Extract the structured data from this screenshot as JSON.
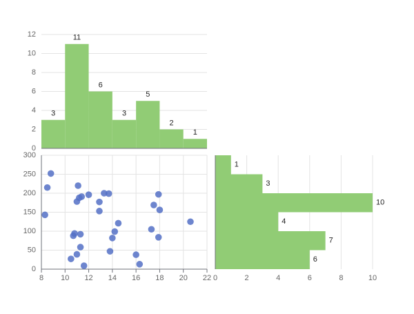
{
  "chart_data": [
    {
      "type": "bar",
      "panel": "top-histogram",
      "bins": [
        [
          8,
          10
        ],
        [
          10,
          12
        ],
        [
          12,
          14
        ],
        [
          14,
          16
        ],
        [
          16,
          18
        ],
        [
          18,
          20
        ],
        [
          20,
          22
        ]
      ],
      "values": [
        3,
        11,
        6,
        3,
        5,
        2,
        1
      ],
      "ylim": [
        0,
        12
      ],
      "yticks": [
        0,
        2,
        4,
        6,
        8,
        10,
        12
      ],
      "color": "#91cc75",
      "grid": true
    },
    {
      "type": "scatter",
      "panel": "scatter",
      "xlim": [
        8,
        22
      ],
      "ylim": [
        0,
        300
      ],
      "xticks": [
        8,
        10,
        12,
        14,
        16,
        18,
        20,
        22
      ],
      "yticks": [
        0,
        50,
        100,
        150,
        200,
        250,
        300
      ],
      "color": "#5470c6",
      "grid": true,
      "points": [
        [
          8.8,
          252
        ],
        [
          8.5,
          215
        ],
        [
          8.3,
          143
        ],
        [
          11.1,
          220
        ],
        [
          11.2,
          188
        ],
        [
          11.4,
          191
        ],
        [
          11.0,
          178
        ],
        [
          12.0,
          196
        ],
        [
          13.3,
          200
        ],
        [
          13.7,
          199
        ],
        [
          12.9,
          177
        ],
        [
          12.9,
          153
        ],
        [
          14.5,
          121
        ],
        [
          14.2,
          99
        ],
        [
          14.0,
          82
        ],
        [
          13.8,
          47
        ],
        [
          10.8,
          94
        ],
        [
          10.7,
          88
        ],
        [
          11.3,
          92
        ],
        [
          11.3,
          58
        ],
        [
          11.0,
          39
        ],
        [
          10.5,
          27
        ],
        [
          11.6,
          9
        ],
        [
          16.0,
          38
        ],
        [
          16.3,
          13
        ],
        [
          17.5,
          169
        ],
        [
          17.3,
          105
        ],
        [
          17.9,
          197
        ],
        [
          18.0,
          156
        ],
        [
          17.9,
          84
        ],
        [
          20.6,
          125
        ]
      ]
    },
    {
      "type": "bar",
      "panel": "right-histogram",
      "orientation": "horizontal",
      "bins": [
        [
          0,
          50
        ],
        [
          50,
          100
        ],
        [
          100,
          150
        ],
        [
          150,
          200
        ],
        [
          200,
          250
        ],
        [
          250,
          300
        ]
      ],
      "values": [
        6,
        7,
        4,
        10,
        3,
        1
      ],
      "xlim": [
        0,
        10
      ],
      "xticks": [
        0,
        2,
        4,
        6,
        8,
        10
      ],
      "color": "#91cc75",
      "grid": true
    }
  ]
}
